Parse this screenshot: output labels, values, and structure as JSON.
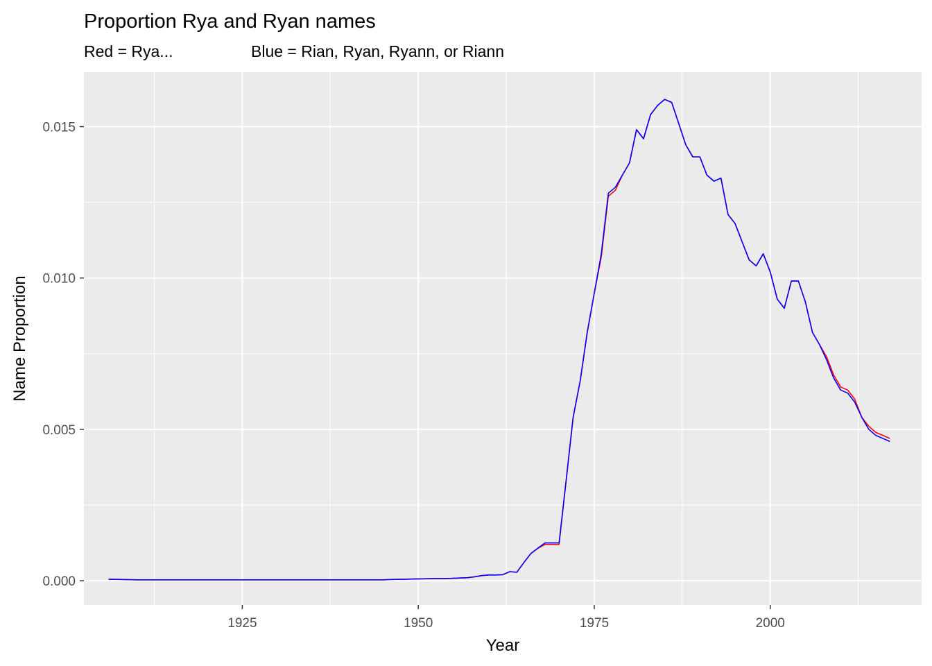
{
  "chart_data": {
    "type": "line",
    "title": "Proportion Rya and Ryan names",
    "subtitle_left": "Red = Rya...",
    "subtitle_right": "Blue = Rian, Ryan, Ryann, or Riann",
    "xlabel": "Year",
    "ylabel": "Name Proportion",
    "xlim": [
      1902.5,
      2021.5
    ],
    "ylim": [
      -0.0008,
      0.0168
    ],
    "x_ticks": [
      1925,
      1950,
      1975,
      2000
    ],
    "x_tick_labels": [
      "1925",
      "1950",
      "1975",
      "2000"
    ],
    "y_ticks": [
      0,
      0.005,
      0.01,
      0.015
    ],
    "y_tick_labels": [
      "0.000",
      "0.005",
      "0.010",
      "0.015"
    ],
    "grid": true,
    "legend": "none",
    "background": "#ebebeb",
    "grid_color": "#ffffff",
    "series": [
      {
        "color": "#ff0000",
        "x": [
          1906,
          1908,
          1910,
          1915,
          1920,
          1925,
          1930,
          1935,
          1940,
          1945,
          1946,
          1948,
          1950,
          1952,
          1954,
          1955,
          1957,
          1958,
          1959,
          1960,
          1961,
          1962,
          1963,
          1964,
          1965,
          1966,
          1967,
          1968,
          1969,
          1970,
          1971,
          1972,
          1973,
          1974,
          1975,
          1976,
          1977,
          1978,
          1979,
          1980,
          1981,
          1982,
          1983,
          1984,
          1985,
          1986,
          1987,
          1988,
          1989,
          1990,
          1991,
          1992,
          1993,
          1994,
          1995,
          1996,
          1997,
          1998,
          1999,
          2000,
          2001,
          2002,
          2003,
          2004,
          2005,
          2006,
          2007,
          2008,
          2009,
          2010,
          2011,
          2012,
          2013,
          2014,
          2015,
          2016,
          2017
        ],
        "y": [
          5e-05,
          4e-05,
          3e-05,
          3e-05,
          3e-05,
          3e-05,
          3e-05,
          3e-05,
          3e-05,
          3e-05,
          4e-05,
          5e-05,
          6e-05,
          7e-05,
          7e-05,
          8e-05,
          0.0001,
          0.00013,
          0.00017,
          0.00019,
          0.00019,
          0.0002,
          0.0003,
          0.00028,
          0.0006,
          0.0009,
          0.00107,
          0.0012,
          0.0012,
          0.0012,
          0.0033,
          0.0054,
          0.0066,
          0.0082,
          0.0095,
          0.0107,
          0.0127,
          0.0129,
          0.0134,
          0.0138,
          0.0149,
          0.0146,
          0.0154,
          0.0157,
          0.0159,
          0.0158,
          0.0151,
          0.0144,
          0.014,
          0.014,
          0.0134,
          0.0132,
          0.0133,
          0.0121,
          0.0118,
          0.0112,
          0.0106,
          0.0104,
          0.0108,
          0.0102,
          0.0093,
          0.009,
          0.0099,
          0.0099,
          0.0092,
          0.0082,
          0.0078,
          0.0074,
          0.0068,
          0.0064,
          0.0063,
          0.006,
          0.0054,
          0.0051,
          0.0049,
          0.0048,
          0.0047
        ]
      },
      {
        "color": "#0000ff",
        "x": [
          1906,
          1908,
          1910,
          1915,
          1920,
          1925,
          1930,
          1935,
          1940,
          1945,
          1946,
          1948,
          1950,
          1952,
          1954,
          1955,
          1957,
          1958,
          1959,
          1960,
          1961,
          1962,
          1963,
          1964,
          1965,
          1966,
          1967,
          1968,
          1969,
          1970,
          1971,
          1972,
          1973,
          1974,
          1975,
          1976,
          1977,
          1978,
          1979,
          1980,
          1981,
          1982,
          1983,
          1984,
          1985,
          1986,
          1987,
          1988,
          1989,
          1990,
          1991,
          1992,
          1993,
          1994,
          1995,
          1996,
          1997,
          1998,
          1999,
          2000,
          2001,
          2002,
          2003,
          2004,
          2005,
          2006,
          2007,
          2008,
          2009,
          2010,
          2011,
          2012,
          2013,
          2014,
          2015,
          2016,
          2017
        ],
        "y": [
          5e-05,
          4e-05,
          3e-05,
          3e-05,
          3e-05,
          3e-05,
          3e-05,
          3e-05,
          3e-05,
          3e-05,
          4e-05,
          5e-05,
          6e-05,
          7e-05,
          7e-05,
          8e-05,
          0.0001,
          0.00013,
          0.00017,
          0.00019,
          0.00019,
          0.0002,
          0.0003,
          0.00028,
          0.0006,
          0.0009,
          0.00108,
          0.00125,
          0.00125,
          0.00125,
          0.0033,
          0.0054,
          0.0066,
          0.0082,
          0.0095,
          0.0108,
          0.0128,
          0.013,
          0.0134,
          0.0138,
          0.0149,
          0.0146,
          0.0154,
          0.0157,
          0.0159,
          0.0158,
          0.0151,
          0.0144,
          0.014,
          0.014,
          0.0134,
          0.0132,
          0.0133,
          0.0121,
          0.0118,
          0.0112,
          0.0106,
          0.0104,
          0.0108,
          0.0102,
          0.0093,
          0.009,
          0.0099,
          0.0099,
          0.0092,
          0.0082,
          0.0078,
          0.0073,
          0.0067,
          0.0063,
          0.0062,
          0.0059,
          0.0054,
          0.005,
          0.0048,
          0.0047,
          0.0046
        ]
      }
    ]
  }
}
